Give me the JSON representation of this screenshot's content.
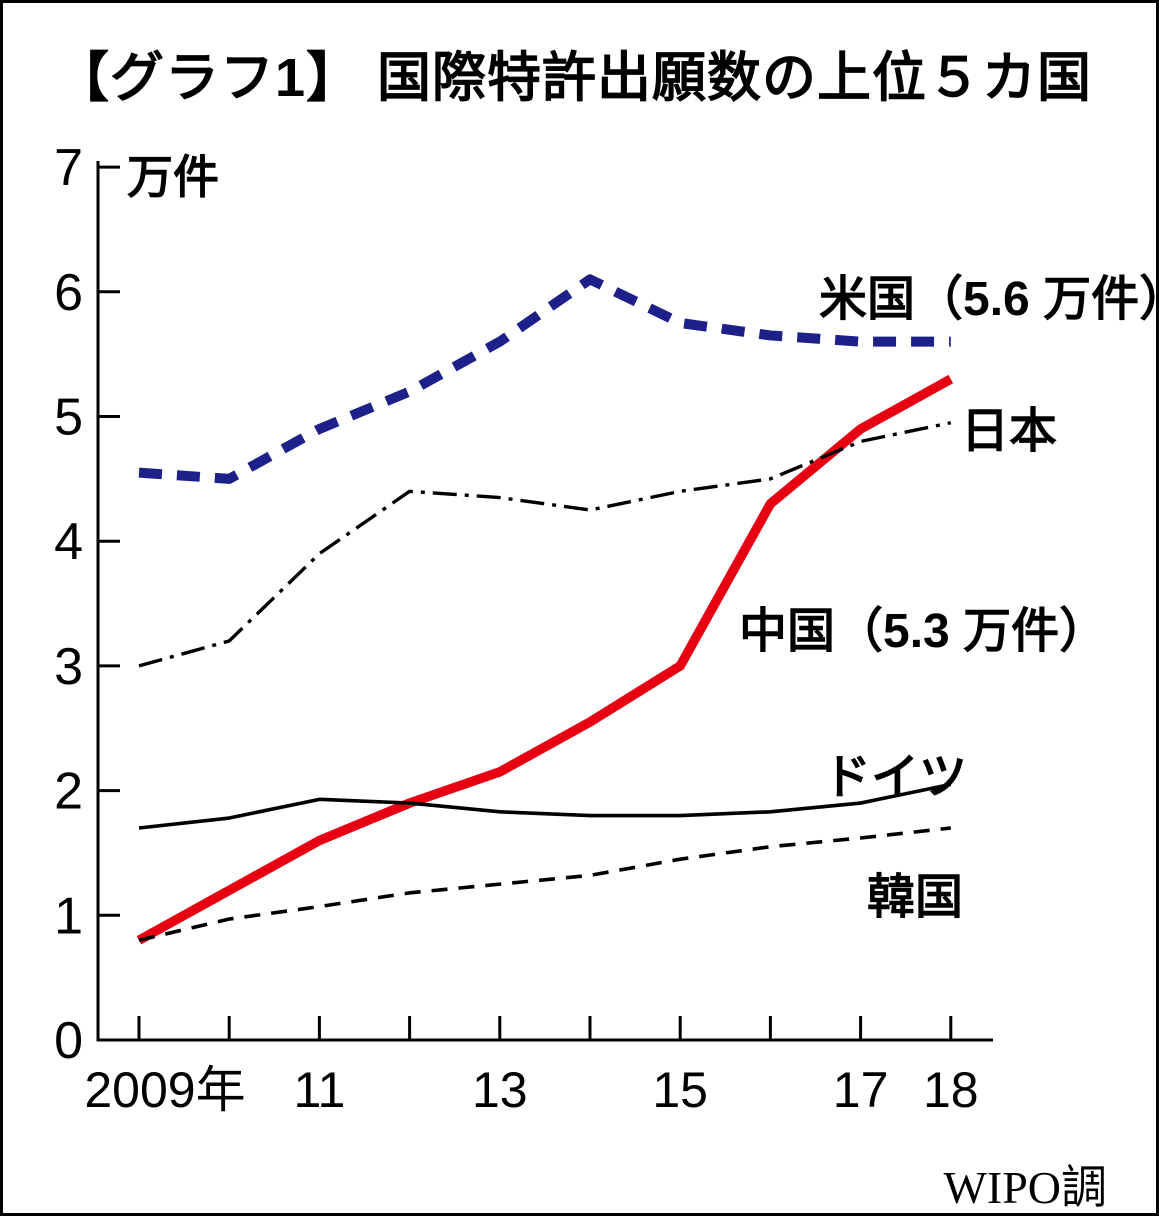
{
  "chart_data": {
    "type": "line",
    "title": "【グラフ1】 国際特許出願数の上位５カ国",
    "unit_label": "万件",
    "source": "WIPO調",
    "ylim": [
      0,
      7
    ],
    "y_ticks": [
      0,
      1,
      2,
      3,
      4,
      5,
      6,
      7
    ],
    "x": [
      2009,
      2010,
      2011,
      2012,
      2013,
      2014,
      2015,
      2016,
      2017,
      2018
    ],
    "x_tick_labels": [
      "2009年",
      "",
      "11",
      "",
      "13",
      "",
      "15",
      "",
      "17",
      "18"
    ],
    "grid": false,
    "legend": "inline-annotations",
    "series": [
      {
        "key": "us",
        "name": "米国",
        "label": "米国（5.6 万件）",
        "color": "#1d2088",
        "style": "dashed-bold",
        "values": [
          4.55,
          4.5,
          4.9,
          5.2,
          5.6,
          6.1,
          5.75,
          5.65,
          5.6,
          5.6
        ]
      },
      {
        "key": "china",
        "name": "中国",
        "label": "中国（5.3 万件）",
        "color": "#e60012",
        "style": "solid-bold",
        "values": [
          0.8,
          1.2,
          1.6,
          1.9,
          2.15,
          2.55,
          3.0,
          4.3,
          4.9,
          5.3
        ]
      },
      {
        "key": "japan",
        "name": "日本",
        "label": "日本",
        "color": "#000000",
        "style": "dashdot",
        "values": [
          3.0,
          3.2,
          3.9,
          4.4,
          4.35,
          4.25,
          4.4,
          4.5,
          4.8,
          4.95
        ]
      },
      {
        "key": "germany",
        "name": "ドイツ",
        "label": "ドイツ",
        "color": "#000000",
        "style": "solid",
        "values": [
          1.7,
          1.78,
          1.93,
          1.9,
          1.83,
          1.8,
          1.8,
          1.83,
          1.9,
          2.05
        ]
      },
      {
        "key": "korea",
        "name": "韓国",
        "label": "韓国",
        "color": "#000000",
        "style": "dashed",
        "values": [
          0.8,
          0.97,
          1.07,
          1.18,
          1.25,
          1.32,
          1.45,
          1.55,
          1.62,
          1.7
        ]
      }
    ]
  }
}
